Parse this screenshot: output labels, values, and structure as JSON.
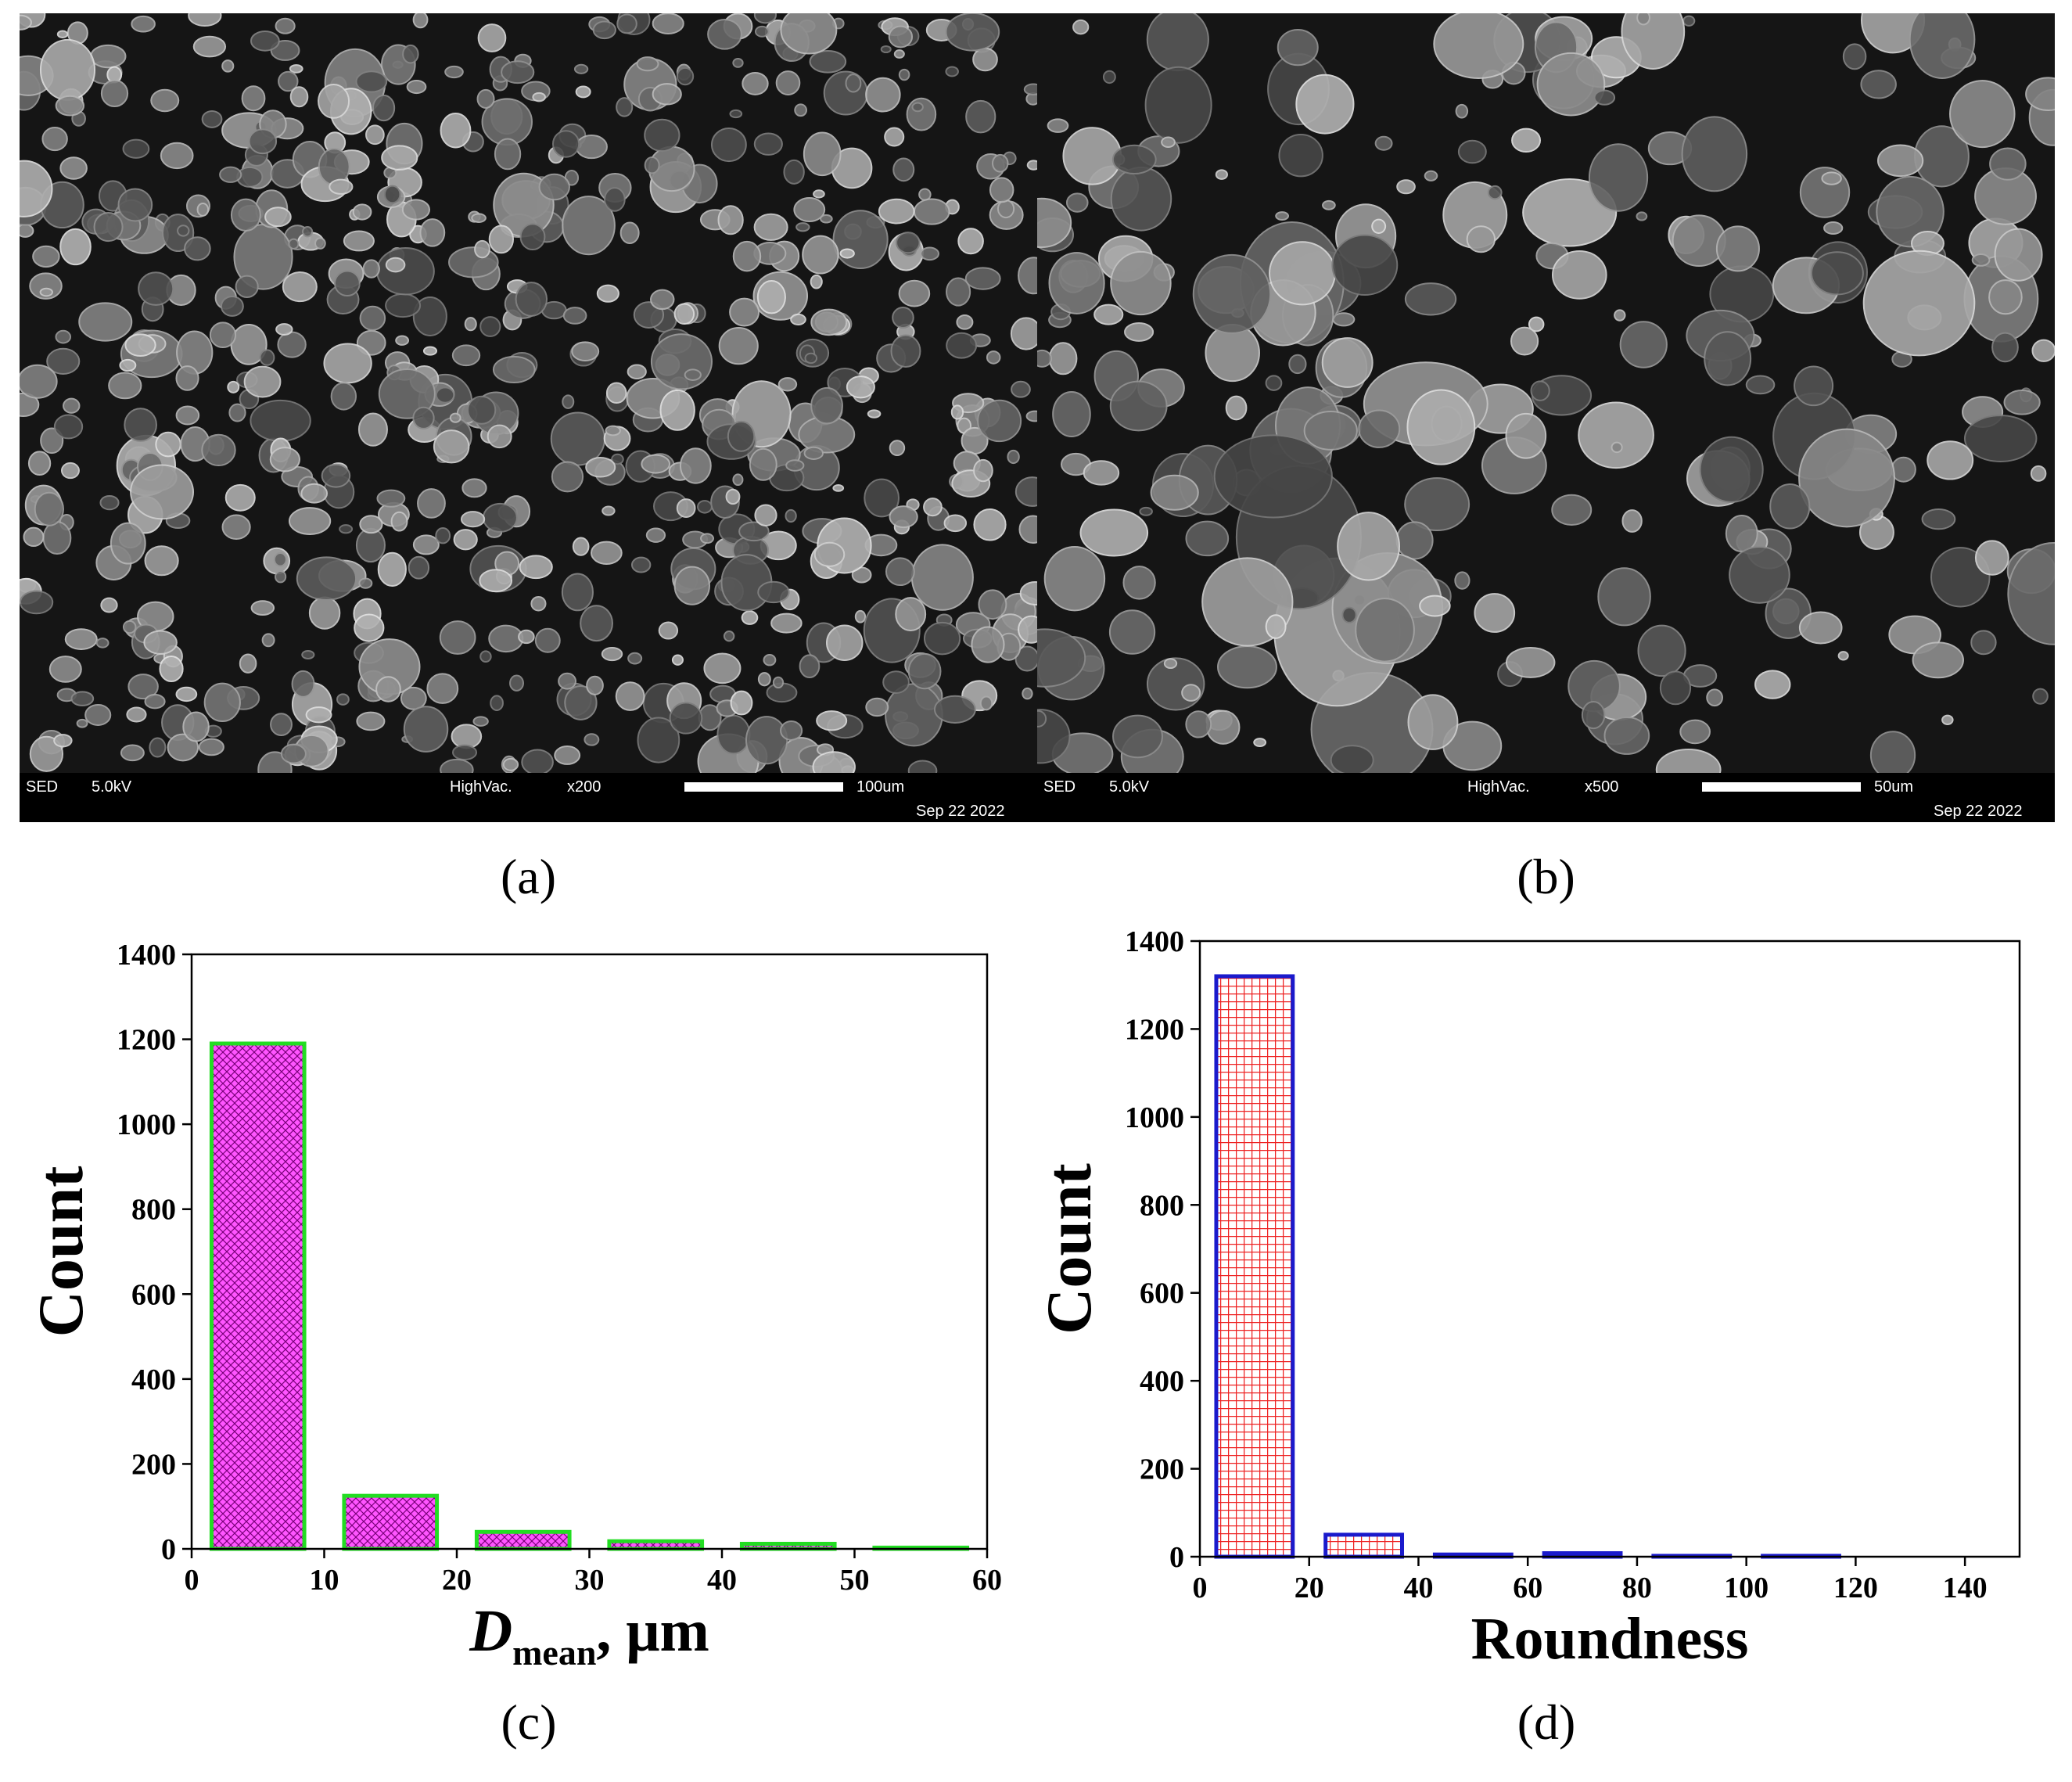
{
  "images": [
    {
      "label": "(a)",
      "detector": "SED",
      "voltage": "5.0kV",
      "vacuum": "HighVac.",
      "magnification": "x200",
      "scale": "100um",
      "date": "Sep 22 2022"
    },
    {
      "label": "(b)",
      "detector": "SED",
      "voltage": "5.0kV",
      "vacuum": "HighVac.",
      "magnification": "x500",
      "scale": "50um",
      "date": "Sep 22 2022"
    }
  ],
  "chart_data": [
    {
      "type": "histogram",
      "label": "(c)",
      "ylabel": "Count",
      "xlabel": {
        "symbol": "D",
        "subscript": "mean",
        "unit": ", μm"
      },
      "bins": [
        0,
        10,
        20,
        30,
        40,
        50,
        60
      ],
      "values": [
        1190,
        125,
        40,
        18,
        12,
        3
      ],
      "color": "#ff55ff",
      "edgecolor": "#22dd22",
      "hatch": "crosshatch",
      "xlim": [
        0,
        60
      ],
      "ylim": [
        0,
        1400
      ],
      "xticks": [
        0,
        10,
        20,
        30,
        40,
        50,
        60
      ],
      "yticks": [
        0,
        200,
        400,
        600,
        800,
        1000,
        1200,
        1400
      ]
    },
    {
      "type": "histogram",
      "label": "(d)",
      "ylabel": "Count",
      "xlabel": {
        "text": "Roundness"
      },
      "bins": [
        0,
        20,
        40,
        60,
        80,
        100,
        120
      ],
      "values": [
        1320,
        50,
        5,
        8,
        2,
        2
      ],
      "color": "#ee2222",
      "edgecolor": "#1a1acc",
      "hatch": "grid",
      "xlim": [
        0,
        150
      ],
      "ylim": [
        0,
        1400
      ],
      "xticks": [
        0,
        20,
        40,
        60,
        80,
        100,
        120,
        140
      ],
      "yticks": [
        0,
        200,
        400,
        600,
        800,
        1000,
        1200,
        1400
      ]
    }
  ]
}
